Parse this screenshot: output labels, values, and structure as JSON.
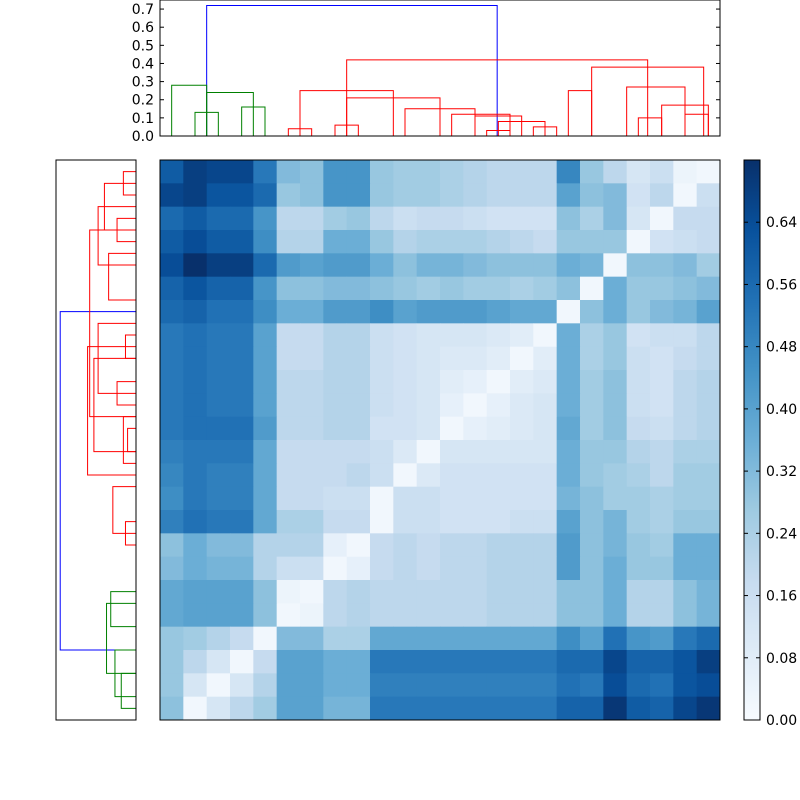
{
  "colors": {
    "link_above": "#0000ff",
    "cluster_a": "#ff0000",
    "cluster_b": "#008000",
    "cmap_low": "#f7fbff",
    "cmap_high": "#08306b"
  },
  "chart_data": [
    {
      "type": "heatmap",
      "title": "",
      "xlabel": "",
      "ylabel": "",
      "size": 24,
      "cmap": "Blues",
      "vmin": 0.0,
      "vmax": 0.72,
      "grid": false,
      "legend_placement": "right",
      "colorbar_ticks": [
        "0.00",
        "0.08",
        "0.16",
        "0.24",
        "0.32",
        "0.40",
        "0.48",
        "0.56",
        "0.64"
      ],
      "rows": [
        [
          0.6,
          0.68,
          0.66,
          0.66,
          0.52,
          0.32,
          0.3,
          0.44,
          0.44,
          0.28,
          0.26,
          0.26,
          0.24,
          0.22,
          0.2,
          0.2,
          0.2,
          0.48,
          0.28,
          0.2,
          0.12,
          0.16,
          0.04,
          0.02
        ],
        [
          0.66,
          0.68,
          0.62,
          0.62,
          0.56,
          0.28,
          0.3,
          0.44,
          0.44,
          0.28,
          0.26,
          0.26,
          0.24,
          0.22,
          0.2,
          0.2,
          0.2,
          0.4,
          0.3,
          0.32,
          0.14,
          0.2,
          0.02,
          0.16
        ],
        [
          0.56,
          0.6,
          0.56,
          0.56,
          0.44,
          0.2,
          0.2,
          0.26,
          0.28,
          0.2,
          0.16,
          0.18,
          0.18,
          0.16,
          0.14,
          0.14,
          0.14,
          0.3,
          0.24,
          0.32,
          0.12,
          0.02,
          0.18,
          0.18
        ],
        [
          0.6,
          0.64,
          0.6,
          0.6,
          0.46,
          0.22,
          0.22,
          0.36,
          0.36,
          0.28,
          0.22,
          0.24,
          0.24,
          0.24,
          0.22,
          0.2,
          0.18,
          0.28,
          0.28,
          0.28,
          0.02,
          0.14,
          0.16,
          0.18
        ],
        [
          0.64,
          0.72,
          0.68,
          0.68,
          0.56,
          0.42,
          0.4,
          0.42,
          0.42,
          0.36,
          0.3,
          0.34,
          0.34,
          0.32,
          0.3,
          0.3,
          0.3,
          0.36,
          0.34,
          0.02,
          0.3,
          0.3,
          0.32,
          0.26
        ],
        [
          0.58,
          0.62,
          0.58,
          0.58,
          0.44,
          0.3,
          0.3,
          0.32,
          0.32,
          0.3,
          0.28,
          0.26,
          0.28,
          0.26,
          0.26,
          0.24,
          0.26,
          0.3,
          0.02,
          0.36,
          0.28,
          0.28,
          0.3,
          0.32
        ],
        [
          0.56,
          0.58,
          0.54,
          0.54,
          0.46,
          0.36,
          0.36,
          0.42,
          0.42,
          0.46,
          0.4,
          0.42,
          0.42,
          0.42,
          0.4,
          0.38,
          0.38,
          0.02,
          0.3,
          0.36,
          0.28,
          0.32,
          0.34,
          0.4
        ],
        [
          0.52,
          0.54,
          0.52,
          0.52,
          0.4,
          0.18,
          0.18,
          0.22,
          0.22,
          0.16,
          0.14,
          0.12,
          0.12,
          0.12,
          0.1,
          0.08,
          0.02,
          0.36,
          0.24,
          0.28,
          0.14,
          0.16,
          0.16,
          0.2
        ],
        [
          0.52,
          0.54,
          0.52,
          0.52,
          0.4,
          0.18,
          0.18,
          0.22,
          0.22,
          0.16,
          0.14,
          0.12,
          0.1,
          0.1,
          0.08,
          0.02,
          0.08,
          0.36,
          0.24,
          0.28,
          0.16,
          0.14,
          0.18,
          0.2
        ],
        [
          0.52,
          0.54,
          0.52,
          0.52,
          0.4,
          0.2,
          0.2,
          0.22,
          0.22,
          0.16,
          0.14,
          0.12,
          0.08,
          0.06,
          0.02,
          0.08,
          0.1,
          0.36,
          0.26,
          0.3,
          0.16,
          0.14,
          0.2,
          0.22
        ],
        [
          0.52,
          0.54,
          0.52,
          0.52,
          0.4,
          0.2,
          0.2,
          0.22,
          0.22,
          0.16,
          0.14,
          0.12,
          0.06,
          0.02,
          0.06,
          0.1,
          0.12,
          0.36,
          0.26,
          0.3,
          0.16,
          0.14,
          0.2,
          0.22
        ],
        [
          0.52,
          0.54,
          0.54,
          0.54,
          0.42,
          0.2,
          0.2,
          0.22,
          0.22,
          0.14,
          0.14,
          0.12,
          0.02,
          0.06,
          0.08,
          0.1,
          0.12,
          0.38,
          0.26,
          0.3,
          0.18,
          0.16,
          0.2,
          0.22
        ],
        [
          0.5,
          0.52,
          0.52,
          0.52,
          0.38,
          0.18,
          0.18,
          0.18,
          0.18,
          0.16,
          0.1,
          0.02,
          0.12,
          0.12,
          0.12,
          0.12,
          0.12,
          0.36,
          0.28,
          0.28,
          0.22,
          0.2,
          0.24,
          0.24
        ],
        [
          0.48,
          0.52,
          0.5,
          0.5,
          0.38,
          0.18,
          0.18,
          0.18,
          0.2,
          0.16,
          0.02,
          0.1,
          0.14,
          0.14,
          0.14,
          0.14,
          0.14,
          0.36,
          0.28,
          0.26,
          0.24,
          0.2,
          0.26,
          0.26
        ],
        [
          0.46,
          0.52,
          0.5,
          0.5,
          0.38,
          0.18,
          0.18,
          0.16,
          0.16,
          0.02,
          0.16,
          0.16,
          0.14,
          0.14,
          0.14,
          0.14,
          0.14,
          0.34,
          0.3,
          0.26,
          0.26,
          0.24,
          0.26,
          0.26
        ],
        [
          0.5,
          0.54,
          0.52,
          0.52,
          0.38,
          0.24,
          0.24,
          0.18,
          0.18,
          0.02,
          0.16,
          0.16,
          0.14,
          0.14,
          0.14,
          0.16,
          0.16,
          0.4,
          0.3,
          0.34,
          0.26,
          0.24,
          0.28,
          0.28
        ],
        [
          0.3,
          0.36,
          0.32,
          0.32,
          0.22,
          0.22,
          0.22,
          0.06,
          0.02,
          0.18,
          0.2,
          0.18,
          0.2,
          0.2,
          0.22,
          0.22,
          0.22,
          0.42,
          0.3,
          0.34,
          0.28,
          0.26,
          0.36,
          0.36
        ],
        [
          0.32,
          0.36,
          0.34,
          0.34,
          0.22,
          0.16,
          0.16,
          0.02,
          0.06,
          0.18,
          0.2,
          0.18,
          0.2,
          0.2,
          0.22,
          0.22,
          0.22,
          0.42,
          0.3,
          0.36,
          0.28,
          0.28,
          0.36,
          0.36
        ],
        [
          0.38,
          0.4,
          0.4,
          0.4,
          0.3,
          0.04,
          0.02,
          0.2,
          0.22,
          0.2,
          0.2,
          0.2,
          0.2,
          0.2,
          0.22,
          0.22,
          0.22,
          0.3,
          0.3,
          0.36,
          0.22,
          0.22,
          0.3,
          0.34
        ],
        [
          0.38,
          0.4,
          0.4,
          0.4,
          0.3,
          0.02,
          0.04,
          0.2,
          0.22,
          0.2,
          0.2,
          0.2,
          0.2,
          0.2,
          0.22,
          0.22,
          0.22,
          0.3,
          0.3,
          0.36,
          0.22,
          0.22,
          0.3,
          0.34
        ],
        [
          0.28,
          0.26,
          0.22,
          0.18,
          0.02,
          0.32,
          0.32,
          0.24,
          0.24,
          0.38,
          0.38,
          0.38,
          0.38,
          0.38,
          0.38,
          0.38,
          0.38,
          0.46,
          0.4,
          0.54,
          0.44,
          0.42,
          0.52,
          0.56
        ],
        [
          0.28,
          0.2,
          0.12,
          0.02,
          0.18,
          0.4,
          0.4,
          0.36,
          0.36,
          0.52,
          0.52,
          0.52,
          0.52,
          0.52,
          0.52,
          0.52,
          0.52,
          0.56,
          0.56,
          0.66,
          0.58,
          0.58,
          0.62,
          0.68
        ],
        [
          0.28,
          0.12,
          0.02,
          0.12,
          0.22,
          0.4,
          0.4,
          0.36,
          0.36,
          0.5,
          0.5,
          0.5,
          0.5,
          0.5,
          0.5,
          0.5,
          0.5,
          0.54,
          0.52,
          0.64,
          0.56,
          0.54,
          0.62,
          0.64
        ],
        [
          0.3,
          0.02,
          0.12,
          0.2,
          0.26,
          0.4,
          0.4,
          0.34,
          0.34,
          0.52,
          0.52,
          0.52,
          0.52,
          0.52,
          0.52,
          0.52,
          0.52,
          0.58,
          0.58,
          0.7,
          0.6,
          0.58,
          0.66,
          0.7
        ]
      ]
    },
    {
      "type": "dendrogram",
      "orientation": "top",
      "title": "",
      "xlabel": "",
      "ylabel": "",
      "ylim": [
        0,
        0.75
      ],
      "ytick_labels": [
        "0.0",
        "0.1",
        "0.2",
        "0.3",
        "0.4",
        "0.5",
        "0.6",
        "0.7"
      ],
      "root_height": 0.72,
      "links": [
        {
          "color": "blue",
          "left": [
            0,
            0
          ],
          "right": [
            0.5,
            0.5
          ],
          "h": 0.72,
          "lx": 1.5,
          "rx": 13.95
        },
        {
          "color": "green",
          "lx": 0,
          "rx": 1.5,
          "h": 0.28
        },
        {
          "color": "green",
          "lx": 1.5,
          "rx": 3.5,
          "h": 0.24
        },
        {
          "color": "green",
          "lx": 1,
          "rx": 2,
          "h": 0.13
        },
        {
          "color": "green",
          "lx": 3,
          "rx": 4,
          "h": 0.16
        },
        {
          "color": "red",
          "lx": 7.5,
          "rx": 20.4,
          "h": 0.42
        },
        {
          "color": "red",
          "lx": 5.5,
          "rx": 9.5,
          "h": 0.25
        },
        {
          "color": "red",
          "lx": 5,
          "rx": 6,
          "h": 0.04
        },
        {
          "color": "red",
          "lx": 7.5,
          "rx": 11.5,
          "h": 0.21
        },
        {
          "color": "red",
          "lx": 7,
          "rx": 8,
          "h": 0.06
        },
        {
          "color": "red",
          "lx": 10,
          "rx": 13,
          "h": 0.15
        },
        {
          "color": "red",
          "lx": 12,
          "rx": 14.5,
          "h": 0.12
        },
        {
          "color": "red",
          "lx": 13,
          "rx": 15,
          "h": 0.11
        },
        {
          "color": "red",
          "lx": 14,
          "rx": 16,
          "h": 0.08
        },
        {
          "color": "red",
          "lx": 13.5,
          "rx": 14.5,
          "h": 0.03
        },
        {
          "color": "red",
          "lx": 15.5,
          "rx": 16.5,
          "h": 0.05
        },
        {
          "color": "red",
          "lx": 18,
          "rx": 22.8,
          "h": 0.38
        },
        {
          "color": "red",
          "lx": 17,
          "rx": 18,
          "h": 0.25
        },
        {
          "color": "red",
          "lx": 19.5,
          "rx": 22,
          "h": 0.27
        },
        {
          "color": "red",
          "lx": 21,
          "rx": 23,
          "h": 0.17
        },
        {
          "color": "red",
          "lx": 20,
          "rx": 21,
          "h": 0.1
        },
        {
          "color": "red",
          "lx": 22,
          "rx": 23,
          "h": 0.12
        }
      ]
    },
    {
      "type": "dendrogram",
      "orientation": "left",
      "title": "",
      "xlabel": "",
      "ylabel": "",
      "links": [
        {
          "color": "blue",
          "a": 6.0,
          "b": 20.5,
          "d": 0.72
        },
        {
          "color": "green",
          "a": 18.5,
          "b": 21.5,
          "d": 0.28
        },
        {
          "color": "green",
          "a": 18.0,
          "b": 19.5,
          "d": 0.24
        },
        {
          "color": "green",
          "a": 20.5,
          "b": 22.5,
          "d": 0.2
        },
        {
          "color": "green",
          "a": 21.5,
          "b": 23.0,
          "d": 0.14
        },
        {
          "color": "red",
          "a": 2.5,
          "b": 10.5,
          "d": 0.44
        },
        {
          "color": "red",
          "a": 1.5,
          "b": 4.0,
          "d": 0.36
        },
        {
          "color": "red",
          "a": 0.5,
          "b": 2.5,
          "d": 0.3
        },
        {
          "color": "red",
          "a": 0.0,
          "b": 1.0,
          "d": 0.12
        },
        {
          "color": "red",
          "a": 2.0,
          "b": 3.0,
          "d": 0.18
        },
        {
          "color": "red",
          "a": 3.5,
          "b": 5.5,
          "d": 0.26
        },
        {
          "color": "red",
          "a": 7.5,
          "b": 13.0,
          "d": 0.46
        },
        {
          "color": "red",
          "a": 8.0,
          "b": 12.0,
          "d": 0.4
        },
        {
          "color": "red",
          "a": 6.5,
          "b": 9.5,
          "d": 0.36
        },
        {
          "color": "red",
          "a": 7.0,
          "b": 8.0,
          "d": 0.1
        },
        {
          "color": "red",
          "a": 9.0,
          "b": 10.0,
          "d": 0.18
        },
        {
          "color": "red",
          "a": 10.5,
          "b": 12.5,
          "d": 0.12
        },
        {
          "color": "red",
          "a": 11.0,
          "b": 12.0,
          "d": 0.08
        },
        {
          "color": "red",
          "a": 13.5,
          "b": 15.5,
          "d": 0.22
        },
        {
          "color": "red",
          "a": 15.0,
          "b": 16.0,
          "d": 0.1
        }
      ]
    }
  ]
}
